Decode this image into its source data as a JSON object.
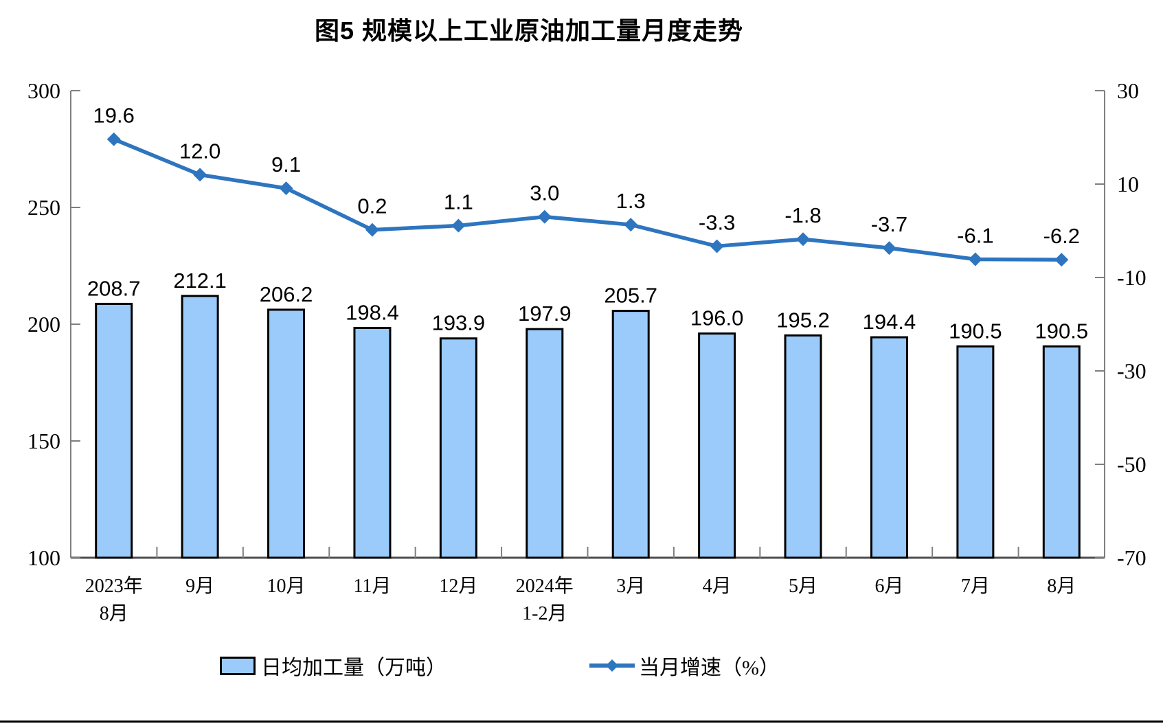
{
  "page": {
    "background": "#ffffff",
    "divider_color": "#000000"
  },
  "chart_data": {
    "type": "bar+line-combo",
    "title": "图5  规模以上工业原油加工量月度走势",
    "categories": [
      "2023年\n8月",
      "9月",
      "10月",
      "11月",
      "12月",
      "2024年\n1-2月",
      "3月",
      "4月",
      "5月",
      "6月",
      "7月",
      "8月"
    ],
    "series": [
      {
        "name": "日均加工量（万吨）",
        "type": "bar",
        "axis": "left",
        "values": [
          208.7,
          212.1,
          206.2,
          198.4,
          193.9,
          197.9,
          205.7,
          196.0,
          195.2,
          194.4,
          190.5,
          190.5
        ],
        "fill": "#9ACBFA",
        "stroke": "#000000"
      },
      {
        "name": "当月增速（%）",
        "type": "line",
        "axis": "right",
        "values": [
          19.6,
          12.0,
          9.1,
          0.2,
          1.1,
          3.0,
          1.3,
          -3.3,
          -1.8,
          -3.7,
          -6.1,
          -6.2
        ],
        "color": "#2E75C0",
        "marker": "diamond"
      }
    ],
    "left_axis": {
      "min": 100,
      "max": 300,
      "step": 50,
      "tick_labels": [
        "100",
        "150",
        "200",
        "250",
        "300"
      ]
    },
    "right_axis": {
      "min": -70,
      "max": 30,
      "step": 20,
      "tick_labels": [
        "-70",
        "-50",
        "-30",
        "-10",
        "10",
        "30"
      ]
    },
    "grid": "off",
    "legend_position": "bottom",
    "axis_color": "#7F7F7F",
    "baseline_color": "#4D4D4D",
    "label_color": "#000000"
  }
}
